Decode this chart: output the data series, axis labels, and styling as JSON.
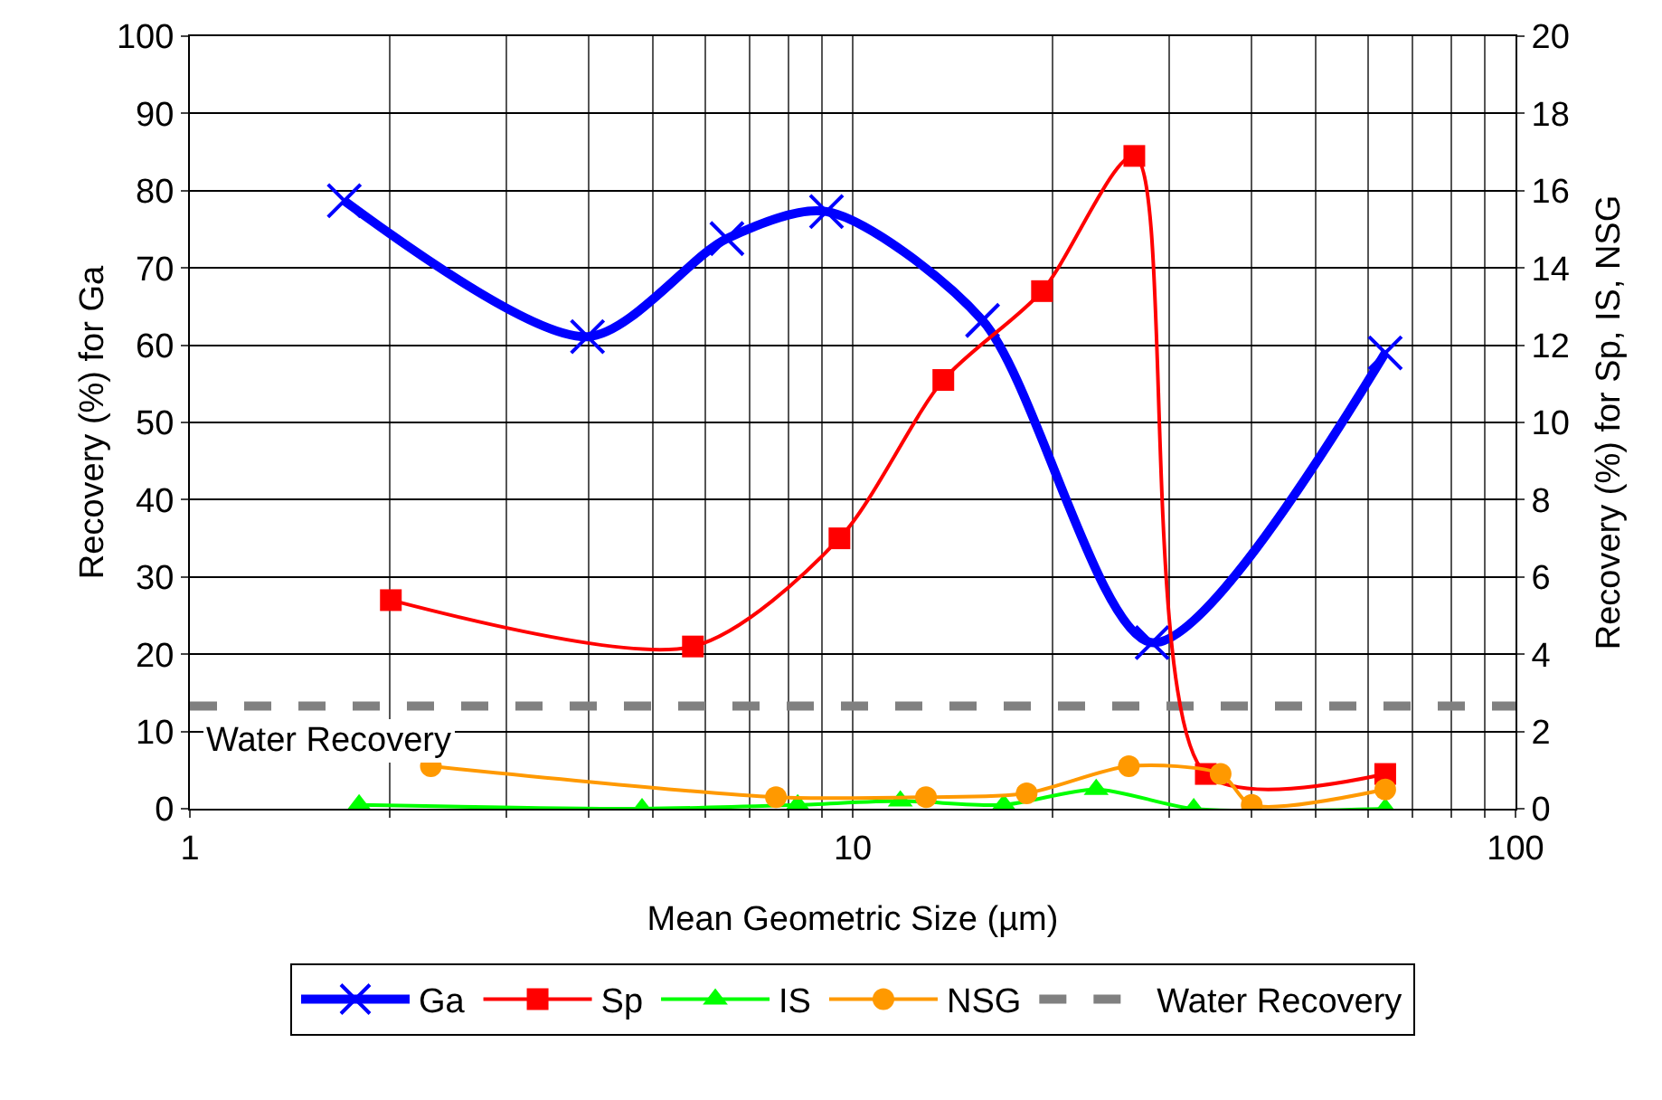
{
  "chart_data": {
    "type": "line",
    "xlabel": "Mean Geometric Size (µm)",
    "ylabel": "Recovery (%) for Ga",
    "y2label": "Recovery (%) for Sp, IS, NSG",
    "log": "x",
    "grid": true,
    "legend": "bottom",
    "line_style": "solid",
    "xlim": [
      1,
      100
    ],
    "xticks": [
      1,
      {
        "value": 2,
        "label": null
      },
      {
        "value": 3,
        "label": null
      },
      {
        "value": 4,
        "label": null
      },
      {
        "value": 5,
        "label": null
      },
      {
        "value": 6,
        "label": null
      },
      {
        "value": 7,
        "label": null
      },
      {
        "value": 8,
        "label": null
      },
      {
        "value": 9,
        "label": null
      },
      10,
      {
        "value": 20,
        "label": null
      },
      {
        "value": 30,
        "label": null
      },
      {
        "value": 40,
        "label": null
      },
      {
        "value": 50,
        "label": null
      },
      {
        "value": 60,
        "label": null
      },
      {
        "value": 70,
        "label": null
      },
      {
        "value": 80,
        "label": null
      },
      {
        "value": 90,
        "label": null
      },
      100
    ],
    "ylim": [
      0,
      100
    ],
    "yticks": [
      0,
      10,
      20,
      30,
      40,
      50,
      60,
      70,
      80,
      90,
      100
    ],
    "y2lim": [
      0,
      20
    ],
    "y2ticks": [
      0,
      2,
      4,
      6,
      8,
      10,
      12,
      14,
      16,
      18,
      20
    ],
    "series": [
      {
        "name": "Ga",
        "color": "#0000ff",
        "marker": "cross",
        "x": [
          1.71,
          3.98,
          6.46,
          9.13,
          15.7,
          28.3,
          63.6
        ],
        "values": [
          78.7,
          61.1,
          73.8,
          77.3,
          63.2,
          21.5,
          59.0
        ]
      },
      {
        "name": "Sp",
        "color": "#ff0000",
        "marker": "square",
        "axis": "y2",
        "x": [
          2.01,
          5.74,
          9.55,
          13.7,
          19.3,
          26.6,
          34.1,
          63.6
        ],
        "values": [
          5.4,
          4.2,
          7.0,
          11.1,
          13.4,
          16.9,
          0.9,
          0.9
        ]
      },
      {
        "name": "IS",
        "color": "#00ff00",
        "marker": "triangle",
        "axis": "y2",
        "x": [
          1.8,
          4.81,
          8.26,
          11.8,
          16.9,
          23.3,
          32.7,
          63.6
        ],
        "values": [
          0.1,
          0,
          0.1,
          0.2,
          0.1,
          0.5,
          0,
          0
        ]
      },
      {
        "name": "NSG",
        "color": "#ff9900",
        "marker": "circle",
        "axis": "y2",
        "x": [
          2.31,
          7.66,
          12.9,
          18.3,
          26.1,
          35.9,
          40.0,
          63.6
        ],
        "values": [
          1.1,
          0.3,
          0.3,
          0.4,
          1.1,
          0.9,
          0.1,
          0.5
        ]
      }
    ],
    "ref_lines": [
      {
        "axis": "y",
        "value": 13.3,
        "label": "Water Recovery",
        "color": "#808080",
        "line_style": "dashed"
      }
    ],
    "annotations": [
      "Water Recovery"
    ]
  }
}
